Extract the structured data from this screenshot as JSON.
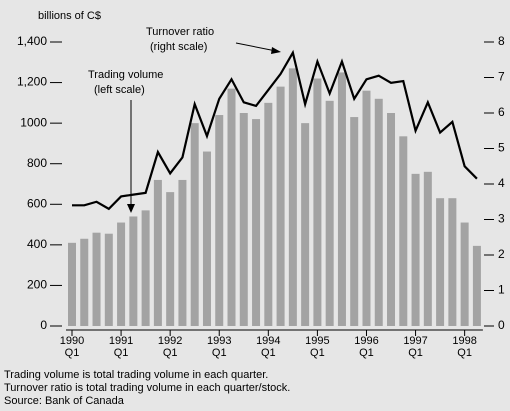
{
  "chart_data": {
    "type": "bar-line",
    "y_label": "billions of C$",
    "annotations": [
      "Turnover ratio",
      "(right scale)",
      "Trading volume",
      "(left scale)"
    ],
    "notes": [
      "Trading volume is total trading volume in each quarter.",
      "Turnover ratio is total trading volume in each quarter/stock.",
      "Source: Bank of Canada"
    ],
    "categories": [
      "1990 Q1",
      null,
      null,
      null,
      "1991 Q1",
      null,
      null,
      null,
      "1992 Q1",
      null,
      null,
      null,
      "1993 Q1",
      null,
      null,
      null,
      "1994 Q1",
      null,
      null,
      null,
      "1995 Q1",
      null,
      null,
      null,
      "1996 Q1",
      null,
      null,
      null,
      "1997 Q1",
      null,
      null,
      null,
      "1998 Q1",
      null
    ],
    "series": [
      {
        "name": "Trading volume",
        "color": "#a3a3a3",
        "values": [
          410,
          430,
          460,
          455,
          510,
          540,
          570,
          720,
          660,
          720,
          1000,
          860,
          1040,
          1170,
          1050,
          1020,
          1100,
          1180,
          1270,
          1000,
          1220,
          1110,
          1250,
          1030,
          1160,
          1120,
          1050,
          935,
          750,
          760,
          630,
          630,
          510,
          395
        ]
      },
      {
        "name": "Turnover ratio",
        "color": "#000000",
        "axis": "y2",
        "values": [
          3.4,
          3.4,
          3.5,
          3.3,
          3.65,
          3.7,
          3.75,
          4.9,
          4.3,
          4.75,
          6.25,
          5.35,
          6.4,
          6.95,
          6.3,
          6.2,
          6.65,
          7.1,
          7.7,
          6.25,
          7.45,
          6.55,
          7.45,
          6.4,
          6.95,
          7.05,
          6.85,
          6.9,
          5.5,
          6.3,
          5.45,
          5.75,
          4.5,
          4.15
        ]
      }
    ],
    "ylim": [
      0,
      1400
    ],
    "yticks": [
      0,
      200,
      400,
      600,
      800,
      1000,
      {
        "value": 1200,
        "label": "1,200"
      },
      {
        "value": 1400,
        "label": "1,400"
      }
    ],
    "y2lim": [
      0,
      8
    ],
    "y2ticks": [
      0,
      1,
      2,
      3,
      4,
      5,
      6,
      7,
      8
    ]
  }
}
